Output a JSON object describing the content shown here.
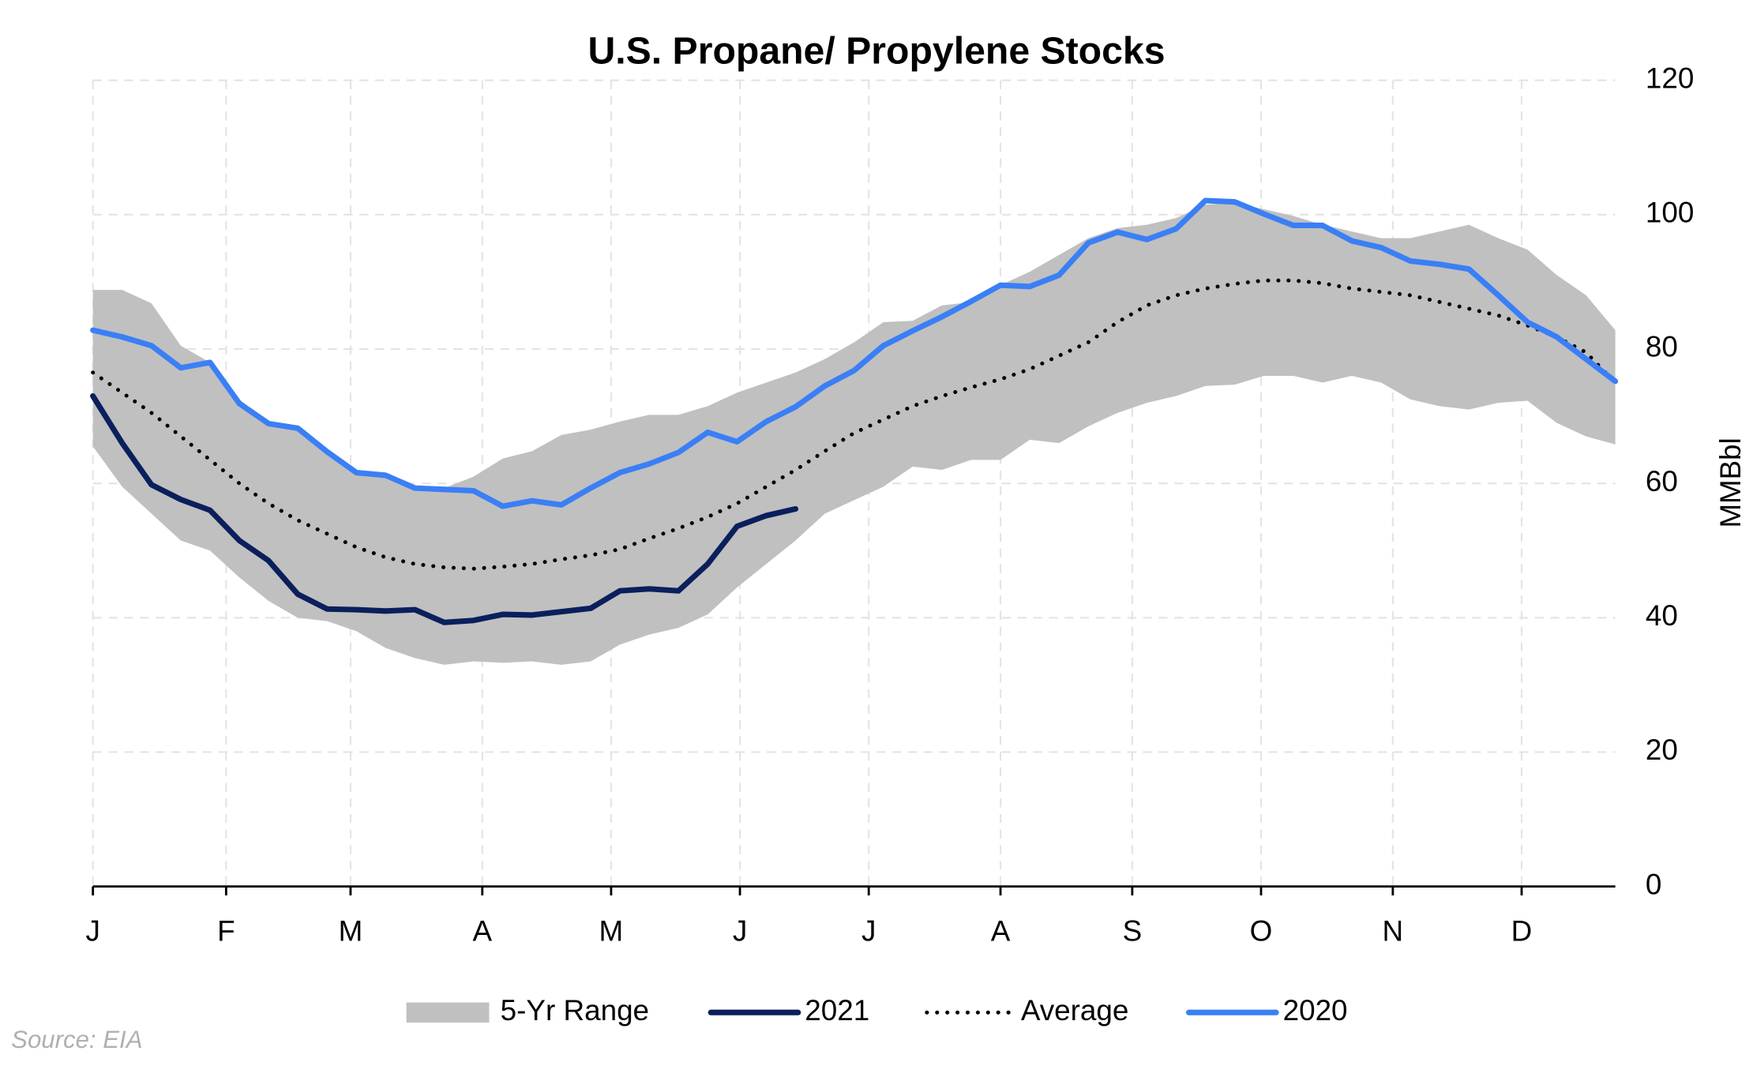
{
  "chart_data": {
    "type": "line",
    "title": "U.S. Propane/ Propylene Stocks",
    "y_label": "MMBbl",
    "source": "Source: EIA",
    "xlim": [
      0,
      52
    ],
    "xticks": [
      {
        "value": 0,
        "label": "J"
      },
      {
        "value": 4.55,
        "label": "F"
      },
      {
        "value": 8.8,
        "label": "M"
      },
      {
        "value": 13.3,
        "label": "A"
      },
      {
        "value": 17.7,
        "label": "M"
      },
      {
        "value": 22.1,
        "label": "J"
      },
      {
        "value": 26.5,
        "label": "J"
      },
      {
        "value": 31.0,
        "label": "A"
      },
      {
        "value": 35.5,
        "label": "S"
      },
      {
        "value": 39.9,
        "label": "O"
      },
      {
        "value": 44.4,
        "label": "N"
      },
      {
        "value": 48.8,
        "label": "D"
      }
    ],
    "ylim": [
      0,
      120
    ],
    "yticks": [
      0,
      20,
      40,
      60,
      80,
      100,
      120
    ],
    "grid": true,
    "legend": "bottom",
    "x": [
      0,
      1,
      2,
      3,
      4,
      5,
      6,
      7,
      8,
      9,
      10,
      11,
      12,
      13,
      14,
      15,
      16,
      17,
      18,
      19,
      20,
      21,
      22,
      23,
      24,
      25,
      26,
      27,
      28,
      29,
      30,
      31,
      32,
      33,
      34,
      35,
      36,
      37,
      38,
      39,
      40,
      41,
      42,
      43,
      44,
      45,
      46,
      47,
      48,
      49,
      50,
      51,
      52
    ],
    "series": [
      {
        "name": "5-Yr Range",
        "color": "#c0c0c0",
        "kind": "band",
        "high": [
          88.8,
          88.8,
          86.8,
          80.5,
          78,
          72.5,
          69,
          68,
          64.5,
          61.5,
          61.2,
          59.5,
          59.3,
          61,
          63.7,
          64.8,
          67.2,
          68,
          69.2,
          70.2,
          70.2,
          71.5,
          73.5,
          75,
          76.5,
          78.5,
          81,
          84,
          84.2,
          86.5,
          87,
          89.5,
          91.5,
          94,
          96.5,
          98,
          98.5,
          99.5,
          101.5,
          101.8,
          100.8,
          99.8,
          98.5,
          97.5,
          96.5,
          96.5,
          97.5,
          98.5,
          96.5,
          94.8,
          91,
          88,
          82.8
        ],
        "low": [
          65.5,
          59.5,
          55.5,
          51.5,
          50,
          46,
          42.5,
          40,
          39.5,
          38,
          35.5,
          34,
          33,
          33.5,
          33.3,
          33.5,
          33,
          33.5,
          36,
          37.5,
          38.5,
          40.5,
          44.5,
          48,
          51.5,
          55.5,
          57.5,
          59.5,
          62.5,
          62,
          63.5,
          63.5,
          66.5,
          66,
          68.5,
          70.5,
          72,
          73,
          74.5,
          74.7,
          76,
          76,
          75,
          76,
          75,
          72.5,
          71.5,
          71,
          72,
          72.3,
          69,
          67,
          65.8
        ]
      },
      {
        "name": "2021",
        "color": "#0a1f5c",
        "kind": "solid",
        "values": [
          73.0,
          66.0,
          59.8,
          57.6,
          56.0,
          51.5,
          48.5,
          43.5,
          41.3,
          41.2,
          41.0,
          41.2,
          39.3,
          39.6,
          40.5,
          40.4,
          40.9,
          41.4,
          44.0,
          44.3,
          44.0,
          48.0,
          53.6,
          55.2,
          56.2,
          null,
          null,
          null,
          null,
          null,
          null,
          null,
          null,
          null,
          null,
          null,
          null,
          null,
          null,
          null,
          null,
          null,
          null,
          null,
          null,
          null,
          null,
          null,
          null,
          null,
          null,
          null,
          null
        ]
      },
      {
        "name": "Average",
        "color": "#000000",
        "kind": "dotted",
        "values": [
          76.5,
          73.5,
          70.5,
          67,
          63.5,
          60,
          57,
          54.5,
          52.5,
          50.5,
          49,
          48,
          47.5,
          47.3,
          47.6,
          48,
          48.7,
          49.3,
          50.2,
          51.8,
          53.3,
          55,
          57,
          59.5,
          62,
          64.8,
          67.5,
          69.5,
          71.5,
          73,
          74.3,
          75.5,
          77,
          79,
          81,
          84,
          86.5,
          88,
          89,
          89.7,
          90.2,
          90.2,
          89.8,
          89,
          88.5,
          88,
          87,
          86,
          85,
          83.5,
          81.8,
          79.5,
          75
        ]
      },
      {
        "name": "2020",
        "color": "#3a7ff6",
        "kind": "solid",
        "values": [
          82.8,
          81.8,
          80.5,
          77.2,
          78.0,
          71.9,
          68.9,
          68.2,
          64.7,
          61.6,
          61.2,
          59.3,
          59.1,
          58.9,
          56.6,
          57.4,
          56.8,
          59.3,
          61.6,
          62.9,
          64.6,
          67.6,
          66.2,
          69.2,
          71.4,
          74.5,
          76.8,
          80.5,
          82.7,
          84.8,
          87.1,
          89.5,
          89.3,
          91.0,
          95.8,
          97.4,
          96.3,
          97.9,
          102.1,
          101.9,
          100.1,
          98.4,
          98.4,
          96.1,
          95.1,
          93.1,
          92.6,
          91.9,
          88.0,
          84.0,
          81.8,
          78.5,
          75.2
        ]
      }
    ]
  }
}
